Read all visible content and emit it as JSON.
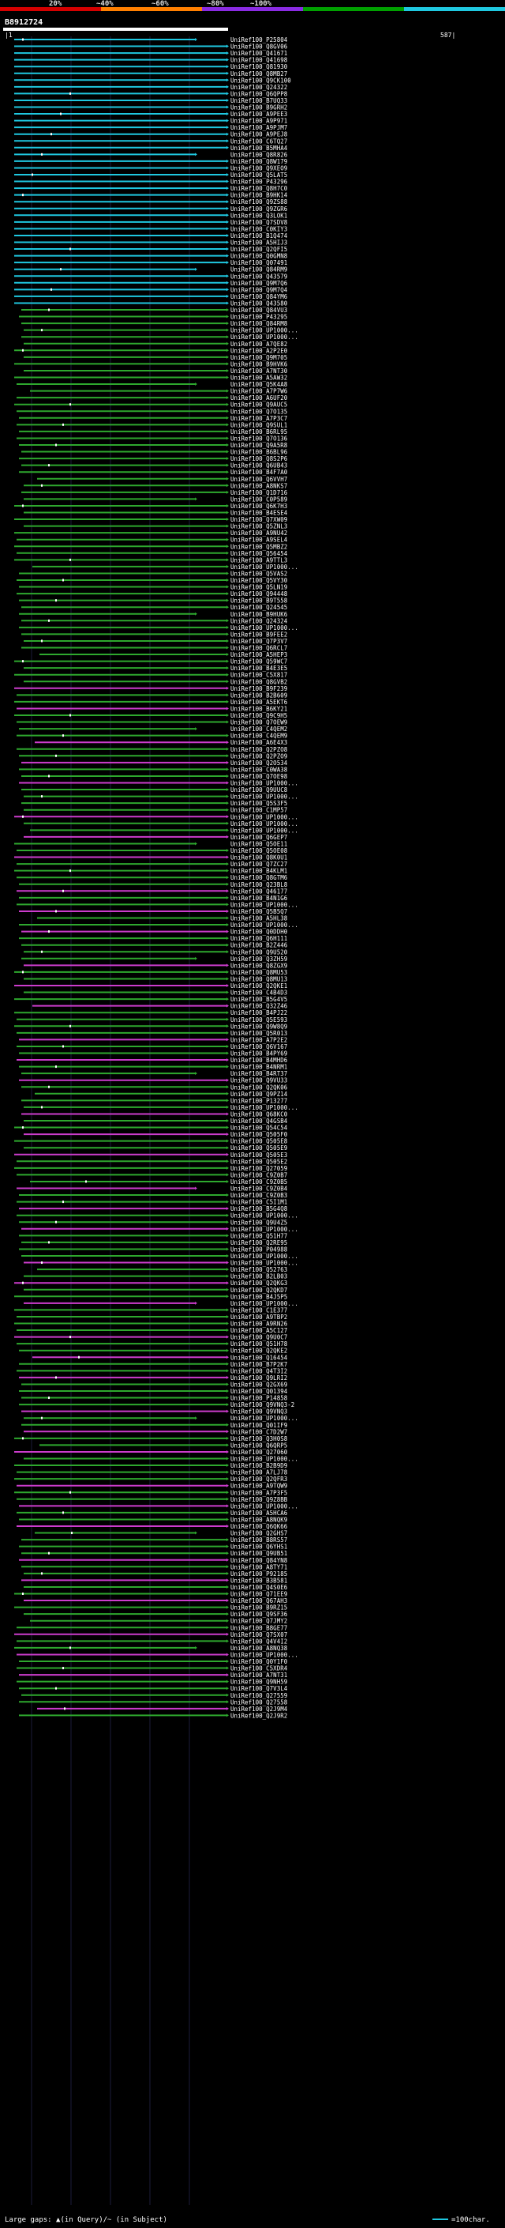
{
  "header": {
    "ticks": [
      "20%",
      "~40%",
      "~60%",
      "~80%",
      "~100%"
    ],
    "query_id": "B8912724",
    "start_label": "|1",
    "end_label": "587|"
  },
  "colors": {
    "tick_colors": [
      "#d40000",
      "#ff7f00",
      "#8a2be2",
      "#00a000",
      "#1fc8e0"
    ],
    "cyan": "#1fc8e0",
    "green": "#2ea82e",
    "magenta": "#cc3ccc"
  },
  "query_length": 587,
  "legend": {
    "text": "Large gaps: ▲(in Query)/~ (in Subject)",
    "scale_text": "=100char."
  },
  "hits": [
    "UniRef100_P25804",
    "UniRef100_Q8GV06",
    "UniRef100_Q41671",
    "UniRef100_Q41698",
    "UniRef100_Q81930",
    "UniRef100_Q8MB27",
    "UniRef100_Q9CK100",
    "UniRef100_Q24322",
    "UniRef100_Q6QPP8",
    "UniRef100_B7UQ33",
    "UniRef100_B9GRH2",
    "UniRef100_A9PEE3",
    "UniRef100_A9P971",
    "UniRef100_A9PJM7",
    "UniRef100_A9PEJ8",
    "UniRef100_C6TQ27",
    "UniRef100_B5MHA4",
    "UniRef100_Q8R826",
    "UniRef100_Q8W179",
    "UniRef100_Q9XEO9",
    "UniRef100_Q5LAT5",
    "UniRef100_P43296",
    "UniRef100_Q8H7C0",
    "UniRef100_B9HK14",
    "UniRef100_Q9ZS88",
    "UniRef100_Q9ZGR6",
    "UniRef100_Q3LOK1",
    "UniRef100_Q7SDV8",
    "UniRef100_C0KIY3",
    "UniRef100_B1Q474",
    "UniRef100_A5HIJ3",
    "UniRef100_Q2QFI5",
    "UniRef100_Q0GMN8",
    "UniRef100_Q07491",
    "UniRef100_Q84RM9",
    "UniRef100_Q43579",
    "UniRef100_Q9M7Q6",
    "UniRef100_Q9M7Q4",
    "UniRef100_Q84YM6",
    "UniRef100_Q43580",
    "UniRef100_Q84VU3",
    "UniRef100_P43295",
    "UniRef100_Q84RM8",
    "UniRef100_UP1000...",
    "UniRef100_UP1000...",
    "UniRef100_A7QE82",
    "UniRef100_A2P2E0",
    "UniRef100_Q9M705",
    "UniRef100_B9HVK6",
    "UniRef100_A7NT30",
    "UniRef100_A5AW32",
    "UniRef100_Q5K4A8",
    "UniRef100_A7P7W6",
    "UniRef100_A6UF20",
    "UniRef100_Q9AUC5",
    "UniRef100_Q7O135",
    "UniRef100_A7P3C7",
    "UniRef100_Q9SUL1",
    "UniRef100_B6RL95",
    "UniRef100_Q7O136",
    "UniRef100_Q9A5R8",
    "UniRef100_B6BL96",
    "UniRef100_Q8S2P6",
    "UniRef100_Q6UB43",
    "UniRef100_B4F7A0",
    "UniRef100_Q6VVH7",
    "UniRef100_A8NKS7",
    "UniRef100_Q1D716",
    "UniRef100_C0P589",
    "UniRef100_Q6K7H3",
    "UniRef100_B4ESE4",
    "UniRef100_Q7XW09",
    "UniRef100_Q5ZNL3",
    "UniRef100_A9NU42",
    "UniRef100_A9SEL4",
    "UniRef100_Q5MBZ2",
    "UniRef100_Q56454",
    "UniRef100_A9TTL3",
    "UniRef100_UP1000...",
    "UniRef100_Q5VAS2",
    "UniRef100_Q5VY30",
    "UniRef100_Q5LN19",
    "UniRef100_Q94448",
    "UniRef100_B9T558",
    "UniRef100_Q24545",
    "UniRef100_B9HUK6",
    "UniRef100_Q24324",
    "UniRef100_UP1000...",
    "UniRef100_B9FEE2",
    "UniRef100_Q7P3V7",
    "UniRef100_Q6RCL7",
    "UniRef100_A5HEP3",
    "UniRef100_Q59WC7",
    "UniRef100_B4E3E5",
    "UniRef100_C5X817",
    "UniRef100_Q8GVB2",
    "UniRef100_B9F239",
    "UniRef100_B2B609",
    "UniRef100_A5EKT6",
    "UniRef100_B6KY21",
    "UniRef100_Q9C9H5",
    "UniRef100_Q7OEW9",
    "UniRef100_C4QEM2",
    "UniRef100_C4QEM9",
    "UniRef100_A6E4X3",
    "UniRef100_Q2PZO8",
    "UniRef100_Q2PZO9",
    "UniRef100_Q2O534",
    "UniRef100_C0WA38",
    "UniRef100_Q7OE98",
    "UniRef100_UP1000...",
    "UniRef100_Q9UUC8",
    "UniRef100_UP1000...",
    "UniRef100_Q5S3F5",
    "UniRef100_C1MP57",
    "UniRef100_UP1000...",
    "UniRef100_UP1000...",
    "UniRef100_UP1000...",
    "UniRef100_Q6GEP7",
    "UniRef100_Q5OE11",
    "UniRef100_Q5OE08",
    "UniRef100_Q8K0U1",
    "UniRef100_Q7ZC27",
    "UniRef100_B4KLM1",
    "UniRef100_Q8GTM6",
    "UniRef100_Q23BL8",
    "UniRef100_Q46177",
    "UniRef100_B4N1G6",
    "UniRef100_UP1000...",
    "UniRef100_Q5B5Q7",
    "UniRef100_A5HL38",
    "UniRef100_UP1000...",
    "UniRef100_Q0DDH0",
    "UniRef100_Q6H111",
    "UniRef100_B2Z446",
    "UniRef100_Q9U520",
    "UniRef100_Q3ZH59",
    "UniRef100_Q8ZGX9",
    "UniRef100_Q8MU53",
    "UniRef100_Q8MU13",
    "UniRef100_Q2QKE1",
    "UniRef100_C4B4D3",
    "UniRef100_B5G4V5",
    "UniRef100_Q32Z46",
    "UniRef100_B4PJ22",
    "UniRef100_Q5E593",
    "UniRef100_Q9W8Q9",
    "UniRef100_Q5R013",
    "UniRef100_A7P2E2",
    "UniRef100_Q6V167",
    "UniRef100_B4PY69",
    "UniRef100_B4MHD6",
    "UniRef100_B4NRM1",
    "UniRef100_B4RT37",
    "UniRef100_Q9VU33",
    "UniRef100_Q2QK06",
    "UniRef100_Q9PZ14",
    "UniRef100_P13277",
    "UniRef100_UP1000...",
    "UniRef100_Q68KC0",
    "UniRef100_Q4GSB4",
    "UniRef100_Q54C54",
    "UniRef100_Q505F0",
    "UniRef100_Q505E8",
    "UniRef100_Q505E9",
    "UniRef100_Q505E3",
    "UniRef100_Q505E2",
    "UniRef100_Q27059",
    "UniRef100_C9Z0B7",
    "UniRef100_C9Z0B5",
    "UniRef100_C9Z0B4",
    "UniRef100_C9Z0B3",
    "UniRef100_C5I1M1",
    "UniRef100_B5G4Q8",
    "UniRef100_UP1000...",
    "UniRef100_Q9U4Z5",
    "UniRef100_UP1000...",
    "UniRef100_Q51H77",
    "UniRef100_Q2RE95",
    "UniRef100_P04988",
    "UniRef100_UP1000...",
    "UniRef100_UP1000...",
    "UniRef100_Q52763",
    "UniRef100_B2LB03",
    "UniRef100_Q2QKG3",
    "UniRef100_Q2QKD7",
    "UniRef100_B4J5P5",
    "UniRef100_UP1000...",
    "UniRef100_C1E377",
    "UniRef100_A9TBP2",
    "UniRef100_A9RN26",
    "UniRef100_A5C127",
    "UniRef100_Q9U0C7",
    "UniRef100_Q51H78",
    "UniRef100_Q2QKE2",
    "UniRef100_Q16454",
    "UniRef100_B7P2K7",
    "UniRef100_Q4T3I2",
    "UniRef100_Q9LRI2",
    "UniRef100_Q2GX69",
    "UniRef100_Q01394",
    "UniRef100_P14858",
    "UniRef100_Q9VNQ3-2",
    "UniRef100_Q9VNQ3",
    "UniRef100_UP1000...",
    "UniRef100_Q01IF9",
    "UniRef100_C7D2W7",
    "UniRef100_Q3H0S8",
    "UniRef100_Q6QRP5",
    "UniRef100_Q27060",
    "UniRef100_UP1000...",
    "UniRef100_B2B9D9",
    "UniRef100_A7LJ78",
    "UniRef100_Q2QFR3",
    "UniRef100_A9TQW9",
    "UniRef100_A7P3F5",
    "UniRef100_Q9Z8BB",
    "UniRef100_UP1000...",
    "UniRef100_A5HCA6",
    "UniRef100_A8NQK9",
    "UniRef100_Q6QK66",
    "UniRef100_Q2GHS7",
    "UniRef100_B8RS57",
    "UniRef100_Q6YHS1",
    "UniRef100_Q9UB51",
    "UniRef100_Q84YN8",
    "UniRef100_A8TY71",
    "UniRef100_P92185",
    "UniRef100_B3B581",
    "UniRef100_Q4S0E6",
    "UniRef100_Q71EE9",
    "UniRef100_Q67AH3",
    "UniRef100_B9RZ15",
    "UniRef100_Q9SF36",
    "UniRef100_Q7JMY2",
    "UniRef100_B8GE77",
    "UniRef100_Q7SX07",
    "UniRef100_Q4V4I2",
    "UniRef100_A8NQ38",
    "UniRef100_UP1000...",
    "UniRef100_Q0Y1F0",
    "UniRef100_C5XDR4",
    "UniRef100_A7NT31",
    "UniRef100_Q9NH59",
    "UniRef100_Q7V3L4",
    "UniRef100_Q27559",
    "UniRef100_Q27558",
    "UniRef100_Q2J9M4",
    "UniRef100_Q2J9R2"
  ]
}
